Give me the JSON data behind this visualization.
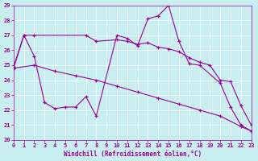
{
  "background_color": "#c8eef0",
  "line_color": "#990099",
  "xlabel": "Windchill (Refroidissement éolien,°C)",
  "xlim": [
    0,
    23
  ],
  "ylim": [
    20,
    29
  ],
  "yticks": [
    20,
    21,
    22,
    23,
    24,
    25,
    26,
    27,
    28,
    29
  ],
  "xticks": [
    0,
    1,
    2,
    3,
    4,
    5,
    6,
    7,
    8,
    9,
    10,
    11,
    12,
    13,
    14,
    15,
    16,
    17,
    18,
    19,
    20,
    21,
    22,
    23
  ],
  "series1_x": [
    0,
    1,
    2,
    3,
    4,
    5,
    6,
    7,
    8,
    10,
    11,
    12,
    13,
    14,
    15,
    16,
    17,
    18,
    20,
    21,
    22,
    23
  ],
  "series1_y": [
    24.8,
    27.0,
    25.6,
    22.5,
    22.1,
    22.2,
    22.2,
    22.9,
    21.6,
    27.0,
    26.8,
    26.3,
    28.1,
    28.3,
    29.0,
    26.6,
    25.1,
    25.0,
    23.8,
    22.2,
    21.0,
    20.6
  ],
  "series2_x": [
    0,
    1,
    2,
    7,
    8,
    10,
    11,
    12,
    13,
    14,
    15,
    16,
    17,
    18,
    19,
    20,
    21,
    22,
    23
  ],
  "series2_y": [
    24.9,
    27.0,
    27.0,
    27.0,
    26.6,
    26.7,
    26.6,
    26.4,
    26.5,
    26.2,
    26.1,
    25.9,
    25.5,
    25.2,
    25.0,
    24.0,
    23.9,
    22.3,
    21.0
  ],
  "series3_x": [
    0,
    2,
    4,
    6,
    8,
    10,
    12,
    14,
    16,
    18,
    20,
    22,
    23
  ],
  "series3_y": [
    24.8,
    25.0,
    24.6,
    24.3,
    24.0,
    23.6,
    23.2,
    22.8,
    22.4,
    22.0,
    21.6,
    20.9,
    20.6
  ]
}
